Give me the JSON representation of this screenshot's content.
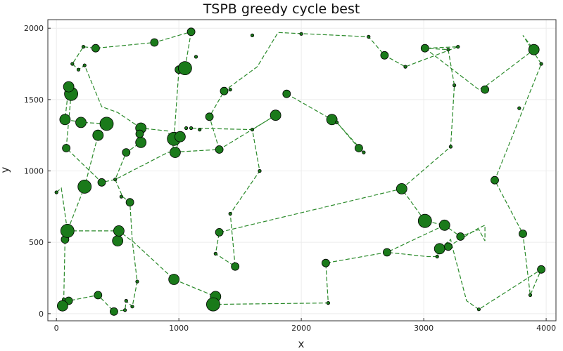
{
  "chart_data": {
    "type": "scatter",
    "title": "TSPB greedy cycle best",
    "xlabel": "x",
    "ylabel": "y",
    "xlim": [
      -70,
      4080
    ],
    "ylim": [
      -50,
      2060
    ],
    "xticks": [
      0,
      1000,
      2000,
      3000,
      4000
    ],
    "yticks": [
      0,
      500,
      1000,
      1500,
      2000
    ],
    "grid": true,
    "legend": "none",
    "colors": {
      "marker": "#1a7a1a",
      "marker_edge": "#000000",
      "path": "#2a8a2a",
      "axis": "#333333",
      "grid": "#ececec"
    },
    "path_style": "dashed",
    "points": [
      [
        1100,
        1975,
        1
      ],
      [
        1600,
        1950,
        0
      ],
      [
        2000,
        1960,
        0
      ],
      [
        2550,
        1940,
        0
      ],
      [
        2680,
        1810,
        1
      ],
      [
        2850,
        1730,
        0
      ],
      [
        3500,
        1570,
        1
      ],
      [
        3900,
        1850,
        2
      ],
      [
        3960,
        1750,
        0
      ],
      [
        3780,
        1440,
        0
      ],
      [
        3580,
        935,
        1
      ],
      [
        3810,
        560,
        1
      ],
      [
        3870,
        130,
        0
      ],
      [
        3960,
        310,
        1
      ],
      [
        3450,
        30,
        0
      ],
      [
        3110,
        400,
        0
      ],
      [
        3130,
        455,
        2
      ],
      [
        3200,
        470,
        1
      ],
      [
        3300,
        540,
        1
      ],
      [
        3170,
        620,
        2
      ],
      [
        3010,
        650,
        3
      ],
      [
        2820,
        875,
        2
      ],
      [
        1330,
        570,
        1
      ],
      [
        1420,
        700,
        0
      ],
      [
        1660,
        1000,
        0
      ],
      [
        1600,
        1290,
        0
      ],
      [
        1790,
        1390,
        2
      ],
      [
        1880,
        1540,
        1
      ],
      [
        2250,
        1360,
        2
      ],
      [
        2470,
        1160,
        1
      ],
      [
        2510,
        1130,
        0
      ],
      [
        2290,
        1340,
        0
      ],
      [
        3220,
        1170,
        0
      ],
      [
        3250,
        1600,
        0
      ],
      [
        3200,
        1850,
        0
      ],
      [
        3010,
        1860,
        1
      ],
      [
        3280,
        1870,
        0
      ],
      [
        2700,
        430,
        1
      ],
      [
        2200,
        355,
        1
      ],
      [
        2220,
        75,
        0
      ],
      [
        1300,
        120,
        2
      ],
      [
        1280,
        65,
        3
      ],
      [
        1300,
        420,
        0
      ],
      [
        1460,
        330,
        1
      ],
      [
        1330,
        1150,
        1
      ],
      [
        480,
        940,
        0
      ],
      [
        530,
        820,
        0
      ],
      [
        600,
        780,
        1
      ],
      [
        500,
        510,
        2
      ],
      [
        660,
        225,
        0
      ],
      [
        620,
        50,
        0
      ],
      [
        570,
        90,
        0
      ],
      [
        340,
        130,
        1
      ],
      [
        470,
        15,
        1
      ],
      [
        560,
        25,
        0
      ],
      [
        960,
        240,
        2
      ],
      [
        100,
        90,
        1
      ],
      [
        50,
        55,
        2
      ],
      [
        60,
        100,
        0
      ],
      [
        70,
        520,
        1
      ],
      [
        90,
        580,
        3
      ],
      [
        510,
        580,
        2
      ],
      [
        370,
        920,
        1
      ],
      [
        230,
        890,
        3
      ],
      [
        80,
        1160,
        1
      ],
      [
        70,
        1360,
        2
      ],
      [
        200,
        1340,
        2
      ],
      [
        120,
        1540,
        3
      ],
      [
        100,
        1590,
        2
      ],
      [
        0,
        850,
        0
      ],
      [
        340,
        1250,
        2
      ],
      [
        410,
        1330,
        3
      ],
      [
        570,
        1130,
        1
      ],
      [
        690,
        1200,
        2
      ],
      [
        690,
        1300,
        2
      ],
      [
        680,
        1260,
        1
      ],
      [
        960,
        1225,
        3
      ],
      [
        1010,
        1240,
        2
      ],
      [
        970,
        1130,
        2
      ],
      [
        1060,
        1300,
        0
      ],
      [
        800,
        1900,
        1
      ],
      [
        320,
        1860,
        1
      ],
      [
        220,
        1870,
        0
      ],
      [
        130,
        1750,
        0
      ],
      [
        180,
        1710,
        0
      ],
      [
        230,
        1740,
        0
      ],
      [
        1000,
        1710,
        1
      ],
      [
        1050,
        1720,
        3
      ],
      [
        1140,
        1800,
        0
      ],
      [
        1370,
        1560,
        1
      ],
      [
        1420,
        1570,
        0
      ],
      [
        1250,
        1380,
        1
      ],
      [
        1170,
        1290,
        0
      ],
      [
        1100,
        1300,
        0
      ]
    ],
    "tour": [
      [
        1100,
        1975
      ],
      [
        1050,
        1720
      ],
      [
        1000,
        1710
      ],
      [
        960,
        1225
      ],
      [
        1010,
        1240
      ],
      [
        970,
        1130
      ],
      [
        910,
        1280
      ],
      [
        690,
        1300
      ],
      [
        680,
        1260
      ],
      [
        690,
        1200
      ],
      [
        570,
        1130
      ],
      [
        480,
        940
      ],
      [
        540,
        820
      ],
      [
        600,
        780
      ],
      [
        620,
        510
      ],
      [
        660,
        225
      ],
      [
        620,
        50
      ],
      [
        570,
        90
      ],
      [
        560,
        25
      ],
      [
        470,
        15
      ],
      [
        340,
        130
      ],
      [
        100,
        90
      ],
      [
        50,
        55
      ],
      [
        60,
        100
      ],
      [
        70,
        520
      ],
      [
        90,
        580
      ],
      [
        510,
        580
      ],
      [
        600,
        520
      ],
      [
        620,
        510
      ],
      [
        960,
        240
      ],
      [
        1300,
        120
      ],
      [
        1280,
        65
      ],
      [
        2220,
        75
      ],
      [
        2200,
        355
      ],
      [
        2700,
        430
      ],
      [
        3170,
        620
      ],
      [
        3010,
        650
      ],
      [
        2820,
        875
      ],
      [
        1330,
        570
      ],
      [
        1300,
        420
      ],
      [
        1460,
        330
      ],
      [
        1420,
        700
      ],
      [
        1660,
        1000
      ],
      [
        1600,
        1290
      ],
      [
        1100,
        1300
      ]
    ],
    "tour2": [
      [
        0,
        850
      ],
      [
        40,
        880
      ],
      [
        90,
        580
      ],
      [
        230,
        890
      ],
      [
        340,
        1250
      ],
      [
        410,
        1330
      ],
      [
        220,
        1340
      ],
      [
        70,
        1360
      ],
      [
        100,
        1590
      ],
      [
        120,
        1540
      ],
      [
        80,
        1160
      ],
      [
        370,
        920
      ],
      [
        480,
        940
      ],
      [
        910,
        1130
      ],
      [
        1330,
        1150
      ],
      [
        1790,
        1390
      ],
      [
        1600,
        1290
      ]
    ],
    "tour3": [
      [
        690,
        1300
      ],
      [
        500,
        1410
      ],
      [
        370,
        1450
      ],
      [
        230,
        1740
      ],
      [
        180,
        1710
      ],
      [
        130,
        1750
      ],
      [
        220,
        1870
      ],
      [
        320,
        1860
      ],
      [
        800,
        1900
      ],
      [
        1100,
        1975
      ]
    ],
    "tour4": [
      [
        1330,
        1150
      ],
      [
        1250,
        1380
      ],
      [
        1370,
        1560
      ],
      [
        1640,
        1730
      ],
      [
        1810,
        1970
      ],
      [
        2550,
        1940
      ],
      [
        2680,
        1810
      ],
      [
        2850,
        1730
      ],
      [
        3280,
        1870
      ],
      [
        3010,
        1860
      ],
      [
        3450,
        1570
      ],
      [
        3500,
        1590
      ],
      [
        3900,
        1850
      ],
      [
        3810,
        1950
      ],
      [
        3960,
        1750
      ],
      [
        3580,
        935
      ],
      [
        3810,
        560
      ],
      [
        3870,
        130
      ],
      [
        3960,
        310
      ],
      [
        3450,
        30
      ],
      [
        3350,
        90
      ],
      [
        3230,
        480
      ],
      [
        3220,
        520
      ],
      [
        3130,
        455
      ],
      [
        3110,
        400
      ],
      [
        3030,
        400
      ],
      [
        2700,
        430
      ]
    ],
    "tour5": [
      [
        1880,
        1540
      ],
      [
        2250,
        1360
      ],
      [
        2290,
        1340
      ],
      [
        2470,
        1160
      ],
      [
        2510,
        1130
      ],
      [
        2290,
        1340
      ]
    ],
    "tour6": [
      [
        2820,
        875
      ],
      [
        3220,
        1170
      ],
      [
        3250,
        1600
      ],
      [
        3200,
        1850
      ],
      [
        3010,
        1860
      ]
    ],
    "tour7": [
      [
        3200,
        470
      ],
      [
        3450,
        600
      ],
      [
        3500,
        620
      ],
      [
        3500,
        510
      ],
      [
        3450,
        590
      ],
      [
        3300,
        540
      ],
      [
        3170,
        620
      ]
    ]
  }
}
